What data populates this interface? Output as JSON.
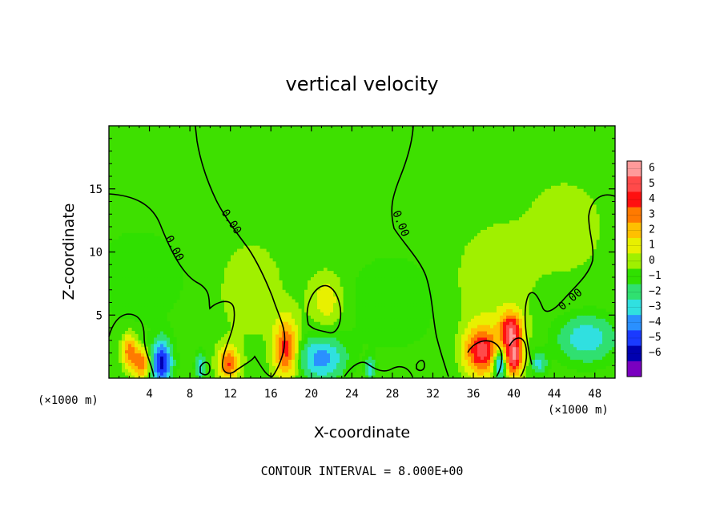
{
  "chart_data": {
    "type": "heatmap",
    "title": "vertical velocity",
    "xlabel": "X-coordinate",
    "ylabel": "Z-coordinate",
    "x_unit_label": "(×1000 m)",
    "x_unit_label_right": "(×1000 m)",
    "xlim": [
      0,
      50
    ],
    "ylim": [
      0,
      20
    ],
    "x_ticks": [
      4,
      8,
      12,
      16,
      20,
      24,
      28,
      32,
      36,
      40,
      44,
      48
    ],
    "x_tick_labels": [
      "4",
      "8",
      "12",
      "16",
      "20",
      "24",
      "28",
      "32",
      "36",
      "40",
      "44",
      "48"
    ],
    "y_ticks": [
      5,
      10,
      15
    ],
    "y_tick_labels": [
      "5",
      "10",
      "15"
    ],
    "colorbar": {
      "levels": [
        6,
        5,
        4,
        3,
        2,
        1,
        0,
        -1,
        -2,
        -3,
        -4,
        -5,
        -6
      ],
      "labels": [
        "6",
        "5",
        "4",
        "3",
        "2",
        "1",
        "0",
        "−1",
        "−2",
        "−3",
        "−4",
        "−5",
        "−6"
      ],
      "colors": [
        "#ff9a9a",
        "#ff4a4a",
        "#ff1010",
        "#ff7a00",
        "#ffc000",
        "#e8f000",
        "#a0f000",
        "#30e000",
        "#30e070",
        "#30e0e0",
        "#2a90ff",
        "#1a3aff",
        "#0000b0",
        "#7a00c0"
      ]
    },
    "contour_labels": [
      "0.00",
      "0.00",
      "0.00",
      "0.00"
    ],
    "background_color": "#3ee000",
    "footer": "CONTOUR INTERVAL = 8.000E+00",
    "anomalies": [
      {
        "x": 2.0,
        "z": 2.2,
        "value": 3.5,
        "sx": 0.5,
        "sz": 0.9
      },
      {
        "x": 3.2,
        "z": 1.2,
        "value": 4.0,
        "sx": 0.6,
        "sz": 0.8
      },
      {
        "x": 5.2,
        "z": 1.3,
        "value": -5.5,
        "sx": 0.7,
        "sz": 1.2
      },
      {
        "x": 9.0,
        "z": 1.0,
        "value": -3.0,
        "sx": 0.3,
        "sz": 0.7
      },
      {
        "x": 11.8,
        "z": 1.2,
        "value": 4.0,
        "sx": 0.7,
        "sz": 0.9
      },
      {
        "x": 17.5,
        "z": 2.3,
        "value": 4.5,
        "sx": 0.8,
        "sz": 1.6
      },
      {
        "x": 21.0,
        "z": 1.6,
        "value": -3.5,
        "sx": 1.6,
        "sz": 1.2
      },
      {
        "x": 25.8,
        "z": 0.8,
        "value": -2.5,
        "sx": 0.3,
        "sz": 0.6
      },
      {
        "x": 36.8,
        "z": 2.2,
        "value": 5.5,
        "sx": 1.1,
        "sz": 1.3
      },
      {
        "x": 38.6,
        "z": 1.1,
        "value": -4.5,
        "sx": 0.4,
        "sz": 0.8
      },
      {
        "x": 39.7,
        "z": 3.8,
        "value": 5.5,
        "sx": 0.8,
        "sz": 1.0
      },
      {
        "x": 40.0,
        "z": 1.6,
        "value": 5.5,
        "sx": 0.6,
        "sz": 1.0
      },
      {
        "x": 42.5,
        "z": 1.2,
        "value": -2.5,
        "sx": 0.5,
        "sz": 0.6
      },
      {
        "x": 47.2,
        "z": 3.2,
        "value": -2.8,
        "sx": 2.0,
        "sz": 1.3
      },
      {
        "x": 21.5,
        "z": 6.2,
        "value": 1.5,
        "sx": 1.2,
        "sz": 1.5
      },
      {
        "x": 37.5,
        "z": 7.5,
        "value": 0.8,
        "sx": 2.5,
        "sz": 3.0
      },
      {
        "x": 3.0,
        "z": 8.0,
        "value": -1.0,
        "sx": 3.0,
        "sz": 2.5
      },
      {
        "x": 28.0,
        "z": 6.0,
        "value": -1.0,
        "sx": 3.0,
        "sz": 2.5
      },
      {
        "x": 14.0,
        "z": 7.0,
        "value": 0.7,
        "sx": 2.5,
        "sz": 3.0
      },
      {
        "x": 45.0,
        "z": 12.0,
        "value": 0.5,
        "sx": 4.0,
        "sz": 4.0
      }
    ]
  }
}
